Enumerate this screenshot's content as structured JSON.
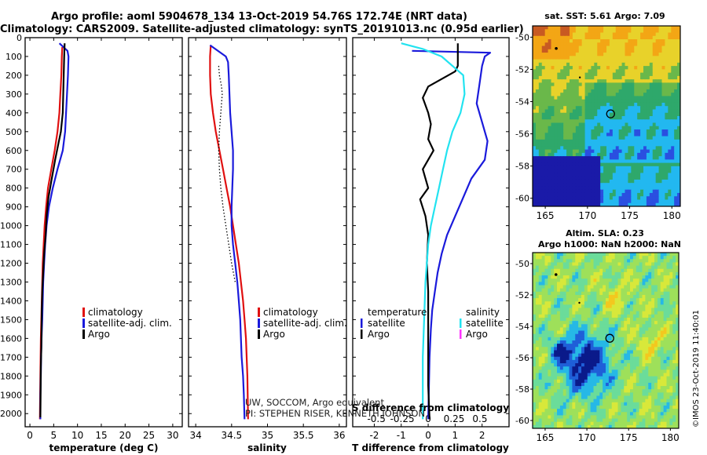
{
  "header": {
    "line1": "Argo profile: aoml 5904678_134 13-Oct-2019 54.76S 172.74E (NRT data)",
    "line2": "Climatology: CARS2009. Satellite-adjusted climatology: synTS_20191013.nc (0.95d earlier)"
  },
  "colors": {
    "climatology": "#e01010",
    "satellite": "#1a1adb",
    "argo": "#000000",
    "sat_salinity": "#22e3f0",
    "argo_salinity": "#ff33ff"
  },
  "chart_data": [
    {
      "type": "line",
      "name": "temperature-profile",
      "xlabel": "temperature (deg C)",
      "ylabel": "",
      "xlim": [
        -1,
        32
      ],
      "ylim": [
        2070,
        0
      ],
      "xticks": [
        "0",
        "5",
        "10",
        "15",
        "20",
        "25",
        "30"
      ],
      "yticks": [
        "0",
        "100",
        "200",
        "300",
        "400",
        "500",
        "600",
        "700",
        "800",
        "900",
        "1000",
        "1100",
        "1200",
        "1300",
        "1400",
        "1500",
        "1600",
        "1700",
        "1800",
        "1900",
        "2000"
      ],
      "legend": [
        "climatology",
        "satellite-adj. clim.",
        "Argo"
      ],
      "series": [
        {
          "name": "climatology",
          "color": "#e01010",
          "x": [
            6.8,
            6.7,
            6.6,
            6.4,
            6.2,
            5.8,
            5.2,
            4.5,
            3.8,
            3.4,
            3.1,
            2.9,
            2.7,
            2.6,
            2.5,
            2.4,
            2.3,
            2.25,
            2.2,
            2.15,
            2.1
          ],
          "y": [
            50,
            100,
            200,
            300,
            400,
            500,
            600,
            700,
            800,
            900,
            1000,
            1100,
            1200,
            1300,
            1400,
            1500,
            1600,
            1700,
            1800,
            1900,
            2030
          ]
        },
        {
          "name": "satellite-adj. clim.",
          "color": "#1a1adb",
          "x": [
            6.2,
            7.9,
            8.1,
            8.0,
            7.8,
            7.6,
            7.4,
            6.9,
            5.8,
            4.8,
            4.0,
            3.5,
            3.2,
            3.0,
            2.8,
            2.7,
            2.6,
            2.45,
            2.35,
            2.3,
            2.2,
            2.2
          ],
          "y": [
            30,
            70,
            100,
            200,
            300,
            400,
            500,
            600,
            700,
            800,
            900,
            1000,
            1100,
            1200,
            1300,
            1400,
            1500,
            1600,
            1700,
            1800,
            1900,
            2030
          ]
        },
        {
          "name": "Argo",
          "color": "#000000",
          "x": [
            7.3,
            7.2,
            7.1,
            7.0,
            6.9,
            6.5,
            6.1,
            5.3,
            4.6,
            3.9,
            3.5,
            3.3,
            3.0,
            2.8,
            2.6,
            2.5,
            2.45,
            2.4,
            2.3,
            2.25,
            2.2
          ],
          "y": [
            30,
            100,
            200,
            300,
            400,
            500,
            550,
            650,
            750,
            850,
            950,
            1050,
            1150,
            1250,
            1350,
            1450,
            1550,
            1650,
            1750,
            1900,
            2020
          ]
        }
      ]
    },
    {
      "type": "line",
      "name": "salinity-profile",
      "xlabel": "salinity",
      "xlim": [
        33.9,
        36.1
      ],
      "ylim": [
        2070,
        0
      ],
      "xticks": [
        "34",
        "34.5",
        "35",
        "35.5",
        "36"
      ],
      "legend": [
        "climatology",
        "satellite-adj. clim.",
        "Argo"
      ],
      "series": [
        {
          "name": "climatology",
          "color": "#e01010",
          "x": [
            34.21,
            34.2,
            34.2,
            34.21,
            34.24,
            34.28,
            34.33,
            34.38,
            34.43,
            34.48,
            34.52,
            34.56,
            34.6,
            34.63,
            34.66,
            34.68,
            34.7,
            34.71,
            34.72,
            34.73
          ],
          "y": [
            40,
            100,
            200,
            300,
            400,
            500,
            600,
            700,
            800,
            900,
            1000,
            1100,
            1200,
            1300,
            1400,
            1500,
            1600,
            1700,
            1800,
            2030
          ]
        },
        {
          "name": "satellite-adj. clim.",
          "color": "#1a1adb",
          "x": [
            34.2,
            34.42,
            34.45,
            34.46,
            34.47,
            34.48,
            34.5,
            34.52,
            34.52,
            34.51,
            34.5,
            34.5,
            34.52,
            34.55,
            34.58,
            34.6,
            34.62,
            34.63,
            34.64,
            34.66,
            34.67,
            34.68
          ],
          "y": [
            40,
            100,
            130,
            200,
            300,
            400,
            500,
            600,
            700,
            800,
            900,
            1000,
            1100,
            1200,
            1300,
            1400,
            1500,
            1600,
            1700,
            1800,
            1900,
            2030
          ]
        },
        {
          "name": "Argo",
          "color": "#000000",
          "x": [
            34.32,
            34.33,
            34.36,
            34.37,
            34.35,
            34.33,
            34.32,
            34.33,
            34.35,
            34.38,
            34.42,
            34.46,
            34.5,
            34.55
          ],
          "y": [
            150,
            200,
            260,
            300,
            400,
            500,
            600,
            700,
            800,
            900,
            1000,
            1100,
            1200,
            1300
          ]
        }
      ]
    },
    {
      "type": "line",
      "name": "difference-profile",
      "xlabel": "T difference from climatology",
      "xlim": [
        -2.8,
        3.0
      ],
      "ylim": [
        2070,
        0
      ],
      "xticks": [
        "-2",
        "-1",
        "0",
        "1",
        "2"
      ],
      "secondary_xticks": [
        "-0.5",
        "-0.25",
        "0",
        "0.25",
        "0.5"
      ],
      "secondary_xlabel": "S difference from climatology",
      "legend_left_title": "temperature",
      "legend_right_title": "salinity",
      "legend": [
        "satellite",
        "Argo",
        "satellite",
        "Argo"
      ],
      "series": [
        {
          "name": "temperature satellite",
          "color": "#1a1adb",
          "x": [
            -0.6,
            2.3,
            2.1,
            2.0,
            1.9,
            1.8,
            2.0,
            2.2,
            2.1,
            1.6,
            1.3,
            1.0,
            0.7,
            0.5,
            0.35,
            0.25,
            0.15,
            0.1,
            0.05,
            0.0
          ],
          "y": [
            70,
            80,
            100,
            150,
            250,
            350,
            450,
            550,
            650,
            750,
            850,
            950,
            1050,
            1150,
            1250,
            1350,
            1450,
            1550,
            1700,
            2030
          ]
        },
        {
          "name": "temperature Argo",
          "color": "#000000",
          "x": [
            1.1,
            1.1,
            1.0,
            0.0,
            -0.2,
            0.0,
            0.1,
            0.0,
            0.2,
            -0.2,
            0.0,
            -0.3,
            -0.1,
            0.0,
            -0.05,
            0.0,
            0.0,
            0.0,
            0.0,
            0.05
          ],
          "y": [
            30,
            150,
            180,
            260,
            320,
            400,
            460,
            540,
            600,
            700,
            800,
            860,
            950,
            1050,
            1200,
            1350,
            1500,
            1650,
            1850,
            2030
          ]
        },
        {
          "name": "salinity satellite",
          "color": "#22e3f0",
          "x": [
            -1.0,
            -0.2,
            0.5,
            1.3,
            1.35,
            1.2,
            0.9,
            0.7,
            0.55,
            0.4,
            0.25,
            0.1,
            0.0,
            -0.1,
            -0.15,
            -0.2,
            -0.2,
            -0.2
          ],
          "y": [
            30,
            60,
            100,
            200,
            300,
            400,
            500,
            600,
            700,
            800,
            900,
            1000,
            1100,
            1300,
            1500,
            1700,
            1900,
            2030
          ]
        }
      ]
    }
  ],
  "legends": {
    "temp": {
      "climatology": "climatology",
      "satellite": "satellite-adj. clim.",
      "argo": "Argo"
    },
    "sal": {
      "climatology": "climatology",
      "satellite": "satellite-adj. clim.",
      "argo": "Argo"
    },
    "diff": {
      "temperature": "temperature",
      "salinity": "salinity",
      "satellite": "satellite",
      "argo": "Argo"
    }
  },
  "credits": {
    "line1": "UW, SOCCOM, Argo equivalent",
    "line2": "PI: STEPHEN RISER, KENNETH JOHNSON"
  },
  "maps": {
    "sst": {
      "title": "sat. SST: 5.61 Argo: 7.09",
      "xticks": [
        "165",
        "170",
        "175",
        "180"
      ],
      "yticks": [
        "-50",
        "-52",
        "-54",
        "-56",
        "-58",
        "-60"
      ],
      "float_lon": 172.74,
      "float_lat": -54.76
    },
    "sla": {
      "title_line1": "Altim. SLA: 0.23",
      "title_line2": "Argo h1000: NaN h2000: NaN",
      "xticks": [
        "165",
        "170",
        "175",
        "180"
      ],
      "yticks": [
        "-50",
        "-52",
        "-54",
        "-56",
        "-58",
        "-60"
      ],
      "float_lon": 172.74,
      "float_lat": -54.76
    }
  },
  "stamp": "©IMOS 23-Oct-2019 11:40:01"
}
